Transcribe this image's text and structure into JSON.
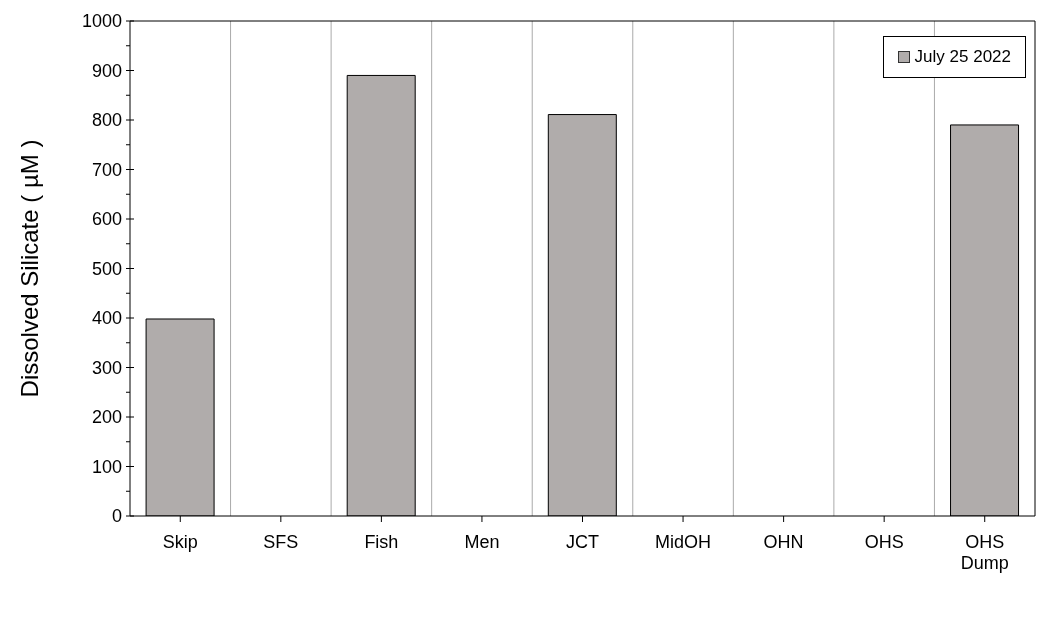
{
  "chart_data": {
    "type": "bar",
    "ylabel": "Dissolved Silicate ( µM )",
    "categories": [
      "Skip",
      "SFS",
      "Fish",
      "Men",
      "JCT",
      "MidOH",
      "OHN",
      "OHS",
      "OHS Dump"
    ],
    "series": [
      {
        "name": "July 25 2022",
        "color": "#b0acab",
        "values": [
          398,
          null,
          890,
          null,
          811,
          null,
          null,
          null,
          790
        ]
      }
    ],
    "ylim": [
      0,
      1000
    ],
    "yticks": [
      0,
      {
        "value": 50,
        "label": null
      },
      100,
      {
        "value": 150,
        "label": null
      },
      200,
      {
        "value": 250,
        "label": null
      },
      300,
      {
        "value": 350,
        "label": null
      },
      400,
      {
        "value": 450,
        "label": null
      },
      500,
      {
        "value": 550,
        "label": null
      },
      600,
      {
        "value": 650,
        "label": null
      },
      700,
      {
        "value": 750,
        "label": null
      },
      800,
      {
        "value": 850,
        "label": null
      },
      900,
      {
        "value": 950,
        "label": null
      },
      1000
    ],
    "grid": "x",
    "legend": "top right"
  }
}
